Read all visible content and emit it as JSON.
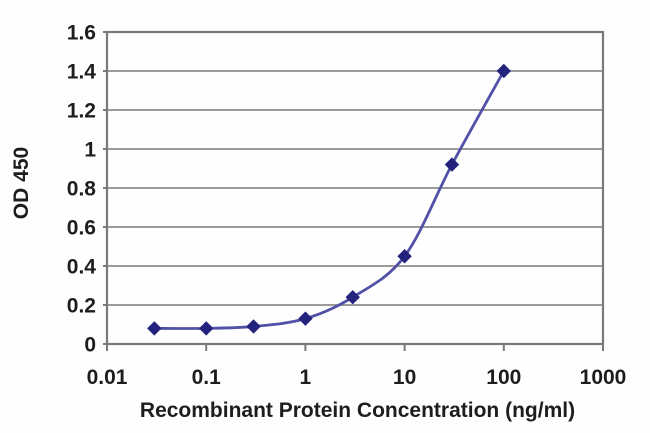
{
  "chart_data": {
    "type": "line",
    "title": "",
    "xlabel": "Recombinant Protein Concentration (ng/ml)",
    "ylabel": "OD 450",
    "x_scale": "log",
    "y_scale": "linear",
    "xlim": [
      0.01,
      1000
    ],
    "ylim": [
      0,
      1.6
    ],
    "x_ticks": [
      0.01,
      0.1,
      1,
      10,
      100,
      1000
    ],
    "x_tick_labels": [
      "0.01",
      "0.1",
      "1",
      "10",
      "100",
      "1000"
    ],
    "y_ticks": [
      0,
      0.2,
      0.4,
      0.6,
      0.8,
      1,
      1.2,
      1.4,
      1.6
    ],
    "y_tick_labels": [
      "0",
      "0.2",
      "0.4",
      "0.6",
      "0.8",
      "1",
      "1.2",
      "1.4",
      "1.6"
    ],
    "grid": "horizontal",
    "legend": "none",
    "series": [
      {
        "name": "OD 450",
        "marker": "diamond",
        "x": [
          0.03,
          0.1,
          0.3,
          1,
          3,
          10,
          30,
          100
        ],
        "y": [
          0.08,
          0.08,
          0.09,
          0.13,
          0.24,
          0.45,
          0.92,
          1.4
        ]
      }
    ],
    "colors": {
      "line": "#5151a8",
      "marker": "#23237d",
      "grid": "#8c8c8c",
      "border": "#7a7a7a",
      "tick_text": "#1d1d1d",
      "background": "#ffffff"
    }
  }
}
